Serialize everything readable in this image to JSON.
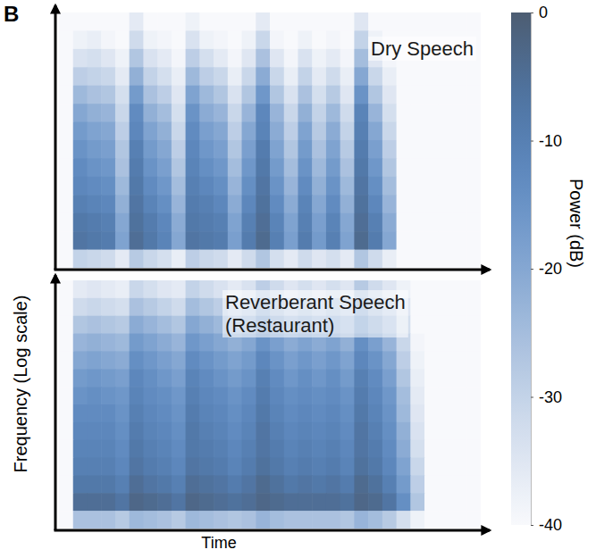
{
  "panel_label": "B",
  "x_label": "Time",
  "y_label": "Frequency (Log scale)",
  "color_bar": {
    "title": "Power (dB)",
    "range": [
      -40,
      0
    ],
    "ticks": [
      0,
      -10,
      -20,
      -30,
      -40
    ]
  },
  "chart_data": [
    {
      "type": "heatmap",
      "title": "Dry Speech",
      "tick_labels": false,
      "cells": [
        [
          -40,
          -40,
          -40,
          -40,
          -40,
          -36,
          -40,
          -40,
          -40,
          -38,
          -40,
          -40,
          -40,
          -40,
          -36,
          -40,
          -40,
          -40,
          -40,
          -40,
          -40,
          -35,
          -40,
          -40,
          -40,
          -40,
          -40,
          -40,
          -40,
          -40
        ],
        [
          -40,
          -38,
          -37,
          -39,
          -40,
          -32,
          -38,
          -39,
          -40,
          -34,
          -38,
          -39,
          -40,
          -38,
          -31,
          -39,
          -40,
          -38,
          -40,
          -39,
          -40,
          -30,
          -38,
          -40,
          -40,
          -40,
          -40,
          -40,
          -40,
          -40
        ],
        [
          -40,
          -34,
          -33,
          -35,
          -38,
          -27,
          -34,
          -36,
          -39,
          -29,
          -33,
          -36,
          -39,
          -35,
          -26,
          -35,
          -39,
          -34,
          -38,
          -36,
          -39,
          -25,
          -35,
          -39,
          -40,
          -40,
          -40,
          -40,
          -40,
          -40
        ],
        [
          -40,
          -29,
          -30,
          -31,
          -36,
          -22,
          -30,
          -33,
          -37,
          -24,
          -29,
          -31,
          -37,
          -31,
          -21,
          -31,
          -37,
          -30,
          -36,
          -32,
          -37,
          -20,
          -31,
          -37,
          -40,
          -40,
          -40,
          -40,
          -40,
          -40
        ],
        [
          -40,
          -24,
          -26,
          -27,
          -33,
          -17,
          -26,
          -29,
          -35,
          -19,
          -24,
          -27,
          -34,
          -27,
          -16,
          -27,
          -34,
          -26,
          -33,
          -28,
          -35,
          -15,
          -27,
          -35,
          -40,
          -40,
          -40,
          -40,
          -40,
          -40
        ],
        [
          -40,
          -20,
          -22,
          -23,
          -31,
          -13,
          -22,
          -25,
          -33,
          -15,
          -21,
          -23,
          -31,
          -23,
          -12,
          -23,
          -31,
          -22,
          -30,
          -24,
          -32,
          -11,
          -23,
          -33,
          -40,
          -40,
          -40,
          -40,
          -40,
          -40
        ],
        [
          -40,
          -17,
          -19,
          -20,
          -29,
          -12,
          -19,
          -22,
          -31,
          -13,
          -18,
          -20,
          -29,
          -20,
          -11,
          -21,
          -29,
          -19,
          -28,
          -21,
          -30,
          -10,
          -20,
          -31,
          -40,
          -40,
          -40,
          -40,
          -40,
          -40
        ],
        [
          -40,
          -15,
          -17,
          -18,
          -27,
          -10,
          -17,
          -20,
          -29,
          -12,
          -16,
          -18,
          -27,
          -18,
          -9,
          -19,
          -27,
          -17,
          -26,
          -19,
          -28,
          -9,
          -18,
          -29,
          -40,
          -40,
          -40,
          -40,
          -40,
          -40
        ],
        [
          -40,
          -13,
          -15,
          -16,
          -26,
          -9,
          -15,
          -18,
          -27,
          -11,
          -14,
          -16,
          -25,
          -16,
          -8,
          -17,
          -25,
          -15,
          -24,
          -17,
          -26,
          -8,
          -16,
          -27,
          -40,
          -40,
          -40,
          -40,
          -40,
          -40
        ],
        [
          -40,
          -12,
          -13,
          -14,
          -24,
          -8,
          -13,
          -16,
          -25,
          -10,
          -12,
          -14,
          -23,
          -14,
          -7,
          -15,
          -23,
          -13,
          -22,
          -15,
          -24,
          -7,
          -14,
          -25,
          -40,
          -40,
          -40,
          -40,
          -40,
          -40
        ],
        [
          -40,
          -10,
          -11,
          -12,
          -22,
          -7,
          -11,
          -14,
          -23,
          -9,
          -10,
          -12,
          -21,
          -12,
          -6,
          -13,
          -21,
          -11,
          -20,
          -13,
          -22,
          -6,
          -12,
          -23,
          -40,
          -40,
          -40,
          -40,
          -40,
          -40
        ],
        [
          -40,
          -8,
          -9,
          -10,
          -20,
          -6,
          -9,
          -12,
          -21,
          -8,
          -9,
          -10,
          -19,
          -10,
          -5,
          -11,
          -19,
          -10,
          -18,
          -11,
          -20,
          -5,
          -10,
          -21,
          -40,
          -40,
          -40,
          -40,
          -40,
          -40
        ],
        [
          -40,
          -7,
          -8,
          -9,
          -19,
          -5,
          -8,
          -11,
          -20,
          -7,
          -8,
          -9,
          -18,
          -9,
          -4,
          -10,
          -18,
          -9,
          -17,
          -10,
          -19,
          -4,
          -9,
          -20,
          -40,
          -40,
          -40,
          -40,
          -40,
          -40
        ],
        [
          -40,
          -30,
          -31,
          -32,
          -36,
          -28,
          -31,
          -33,
          -37,
          -29,
          -31,
          -32,
          -36,
          -32,
          -27,
          -33,
          -36,
          -32,
          -35,
          -33,
          -36,
          -27,
          -32,
          -37,
          -40,
          -40,
          -40,
          -40,
          -40,
          -40
        ]
      ]
    },
    {
      "type": "heatmap",
      "title": "Reverberant Speech (Restaurant)",
      "tick_labels": false,
      "cells": [
        [
          -40,
          -36,
          -35,
          -36,
          -37,
          -31,
          -33,
          -35,
          -36,
          -30,
          -32,
          -34,
          -36,
          -34,
          -29,
          -32,
          -35,
          -33,
          -35,
          -33,
          -35,
          -28,
          -32,
          -35,
          -38,
          -40,
          -40,
          -40,
          -40,
          -40
        ],
        [
          -40,
          -32,
          -31,
          -32,
          -33,
          -26,
          -28,
          -30,
          -32,
          -25,
          -27,
          -29,
          -31,
          -29,
          -24,
          -27,
          -30,
          -28,
          -30,
          -28,
          -30,
          -23,
          -27,
          -30,
          -35,
          -40,
          -40,
          -40,
          -40,
          -40
        ],
        [
          -40,
          -27,
          -26,
          -27,
          -28,
          -21,
          -23,
          -25,
          -27,
          -20,
          -22,
          -24,
          -26,
          -24,
          -19,
          -22,
          -25,
          -23,
          -25,
          -23,
          -25,
          -18,
          -22,
          -26,
          -33,
          -40,
          -40,
          -40,
          -40,
          -40
        ],
        [
          -40,
          -23,
          -22,
          -23,
          -24,
          -17,
          -19,
          -21,
          -23,
          -16,
          -18,
          -20,
          -22,
          -20,
          -15,
          -18,
          -21,
          -19,
          -21,
          -19,
          -22,
          -14,
          -18,
          -23,
          -31,
          -39,
          -40,
          -40,
          -40,
          -40
        ],
        [
          -40,
          -20,
          -19,
          -20,
          -21,
          -14,
          -16,
          -18,
          -20,
          -13,
          -15,
          -17,
          -19,
          -17,
          -12,
          -15,
          -18,
          -16,
          -18,
          -16,
          -19,
          -12,
          -15,
          -20,
          -29,
          -38,
          -40,
          -40,
          -40,
          -40
        ],
        [
          -40,
          -17,
          -16,
          -17,
          -18,
          -12,
          -14,
          -16,
          -18,
          -11,
          -13,
          -15,
          -17,
          -15,
          -10,
          -13,
          -16,
          -14,
          -16,
          -14,
          -17,
          -10,
          -13,
          -18,
          -27,
          -37,
          -40,
          -40,
          -40,
          -40
        ],
        [
          -40,
          -15,
          -14,
          -15,
          -16,
          -11,
          -13,
          -14,
          -16,
          -10,
          -12,
          -13,
          -15,
          -13,
          -9,
          -12,
          -14,
          -13,
          -14,
          -13,
          -15,
          -9,
          -12,
          -16,
          -25,
          -36,
          -40,
          -40,
          -40,
          -40
        ],
        [
          -40,
          -13,
          -13,
          -13,
          -15,
          -10,
          -12,
          -13,
          -15,
          -9,
          -11,
          -12,
          -14,
          -12,
          -8,
          -11,
          -13,
          -12,
          -13,
          -12,
          -14,
          -8,
          -11,
          -15,
          -24,
          -35,
          -40,
          -40,
          -40,
          -40
        ],
        [
          -40,
          -12,
          -12,
          -12,
          -14,
          -9,
          -11,
          -12,
          -14,
          -8,
          -10,
          -11,
          -13,
          -11,
          -7,
          -10,
          -12,
          -11,
          -12,
          -11,
          -13,
          -7,
          -10,
          -14,
          -22,
          -34,
          -40,
          -40,
          -40,
          -40
        ],
        [
          -40,
          -11,
          -11,
          -11,
          -13,
          -8,
          -10,
          -11,
          -13,
          -8,
          -9,
          -10,
          -12,
          -10,
          -7,
          -9,
          -11,
          -10,
          -11,
          -10,
          -12,
          -7,
          -9,
          -13,
          -21,
          -33,
          -40,
          -40,
          -40,
          -40
        ],
        [
          -40,
          -10,
          -10,
          -10,
          -12,
          -7,
          -9,
          -10,
          -12,
          -7,
          -8,
          -9,
          -11,
          -9,
          -6,
          -8,
          -10,
          -9,
          -10,
          -9,
          -11,
          -6,
          -8,
          -12,
          -19,
          -31,
          -40,
          -40,
          -40,
          -40
        ],
        [
          -40,
          -8,
          -8,
          -8,
          -10,
          -5,
          -7,
          -8,
          -10,
          -5,
          -6,
          -7,
          -9,
          -7,
          -4,
          -6,
          -8,
          -7,
          -8,
          -7,
          -9,
          -4,
          -6,
          -10,
          -17,
          -29,
          -40,
          -40,
          -40,
          -40
        ],
        [
          -40,
          -5,
          -5,
          -5,
          -7,
          -3,
          -4,
          -5,
          -7,
          -3,
          -4,
          -5,
          -6,
          -5,
          -3,
          -4,
          -5,
          -5,
          -5,
          -5,
          -6,
          -3,
          -4,
          -7,
          -14,
          -27,
          -40,
          -40,
          -40,
          -40
        ],
        [
          -40,
          -26,
          -26,
          -26,
          -28,
          -24,
          -25,
          -26,
          -28,
          -24,
          -25,
          -26,
          -27,
          -26,
          -23,
          -25,
          -26,
          -26,
          -26,
          -26,
          -27,
          -23,
          -25,
          -28,
          -33,
          -38,
          -40,
          -40,
          -40,
          -40
        ]
      ]
    }
  ]
}
